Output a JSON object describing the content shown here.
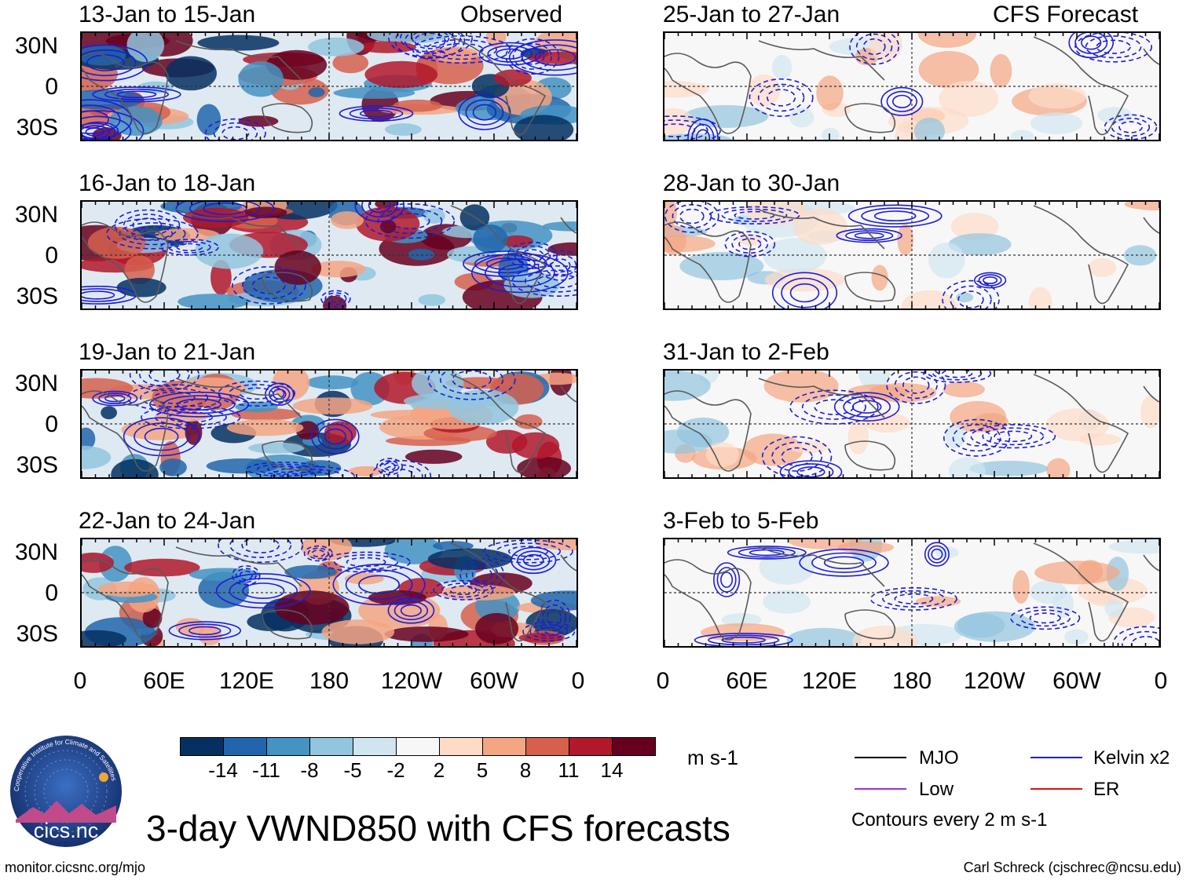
{
  "panels_left": [
    {
      "date": "13-Jan to 15-Jan",
      "label": "Observed"
    },
    {
      "date": "16-Jan to 18-Jan",
      "label": ""
    },
    {
      "date": "19-Jan to 21-Jan",
      "label": ""
    },
    {
      "date": "22-Jan to 24-Jan",
      "label": ""
    }
  ],
  "panels_right": [
    {
      "date": "25-Jan to 27-Jan",
      "label": "CFS Forecast"
    },
    {
      "date": "28-Jan to 30-Jan",
      "label": ""
    },
    {
      "date": "31-Jan to 2-Feb",
      "label": ""
    },
    {
      "date": "3-Feb to 5-Feb",
      "label": ""
    }
  ],
  "y_ticks": [
    "30N",
    "0",
    "30S"
  ],
  "x_ticks": [
    "0",
    "60E",
    "120E",
    "180",
    "120W",
    "60W",
    "0"
  ],
  "colorbar": {
    "units": "m s-1",
    "labels": [
      "-14",
      "-11",
      "-8",
      "-5",
      "-2",
      "2",
      "5",
      "8",
      "11",
      "14"
    ],
    "colors": [
      "#053061",
      "#2166ac",
      "#4393c3",
      "#92c5de",
      "#d1e5f0",
      "#f7f7f7",
      "#fddbc7",
      "#f4a582",
      "#d6604d",
      "#b2182b",
      "#67001f"
    ]
  },
  "legend": {
    "items": [
      {
        "name": "MJO",
        "color": "#000000"
      },
      {
        "name": "Kelvin x2",
        "color": "#1c1cd8"
      },
      {
        "name": "Low",
        "color": "#9933cc"
      },
      {
        "name": "ER",
        "color": "#e01010"
      }
    ],
    "note": "Contours every 2 m s-1"
  },
  "title": "3-day VWND850 with CFS forecasts",
  "logo_text": "cics.nc",
  "logo_ring": "Cooperative Institute for Climate and Satellites",
  "footer_left": "monitor.cicsnc.org/mjo",
  "footer_right": "Carl Schreck (cjschrec@ncsu.edu)"
}
